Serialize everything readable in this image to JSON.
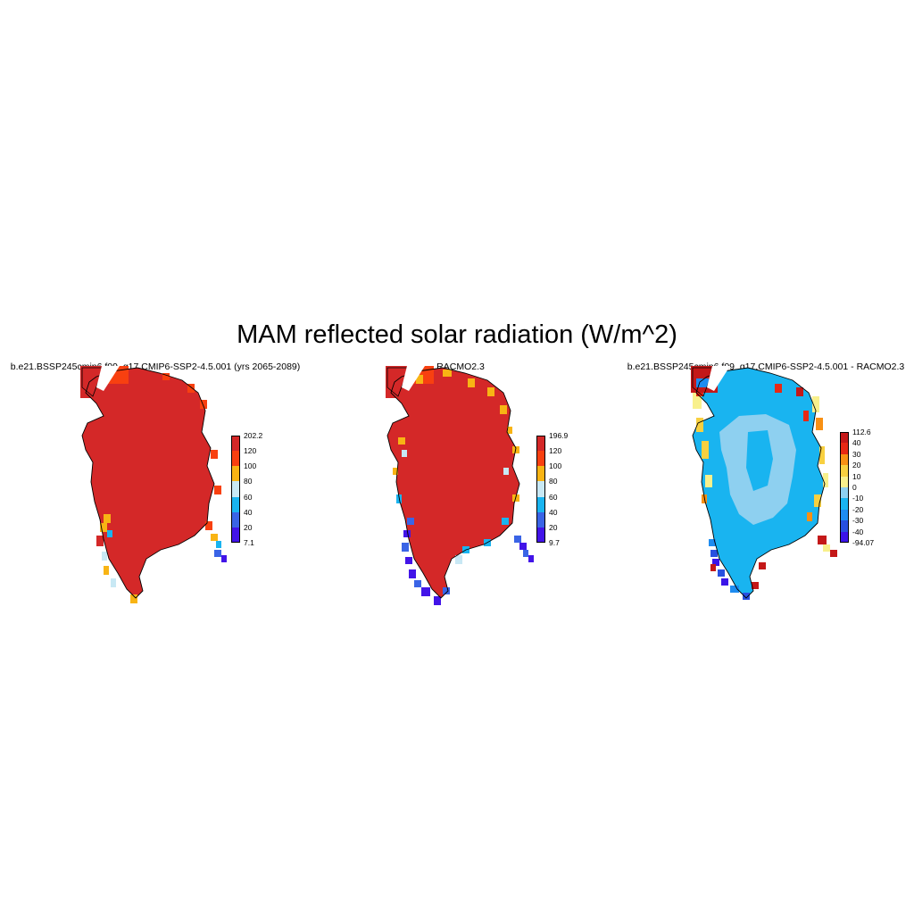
{
  "title": "MAM reflected solar radiation (W/m^2)",
  "panels": [
    {
      "id": "model",
      "title": "b.e21.BSSP245cmip6.f09_g17.CMIP6-SSP2-4.5.001 (yrs 2065-2089)",
      "colorbar": {
        "colors": [
          "#4214e8",
          "#3a64e6",
          "#19b4f0",
          "#c8e8f4",
          "#f8b414",
          "#f84010",
          "#d42828"
        ],
        "labels": [
          "7.1",
          "20",
          "40",
          "60",
          "80",
          "100",
          "120",
          "202.2"
        ]
      }
    },
    {
      "id": "obs",
      "title": "RACMO2.3",
      "colorbar": {
        "colors": [
          "#4214e8",
          "#3a64e6",
          "#19b4f0",
          "#c8e8f4",
          "#f8b414",
          "#f84010",
          "#d42828"
        ],
        "labels": [
          "9.7",
          "20",
          "40",
          "60",
          "80",
          "100",
          "120",
          "196.9"
        ]
      }
    },
    {
      "id": "diff",
      "title": "b.e21.BSSP245cmip6.f09_g17.CMIP6-SSP2-4.5.001 - RACMO2.3",
      "colorbar": {
        "colors": [
          "#3b14e8",
          "#2850e0",
          "#1e8cf0",
          "#19b4f0",
          "#8ed0f0",
          "#f8f08c",
          "#f8d040",
          "#f89014",
          "#e82814",
          "#c41818"
        ],
        "labels": [
          "-94.07",
          "-40",
          "-30",
          "-20",
          "-10",
          "0",
          "10",
          "20",
          "30",
          "40",
          "112.6"
        ]
      }
    }
  ]
}
